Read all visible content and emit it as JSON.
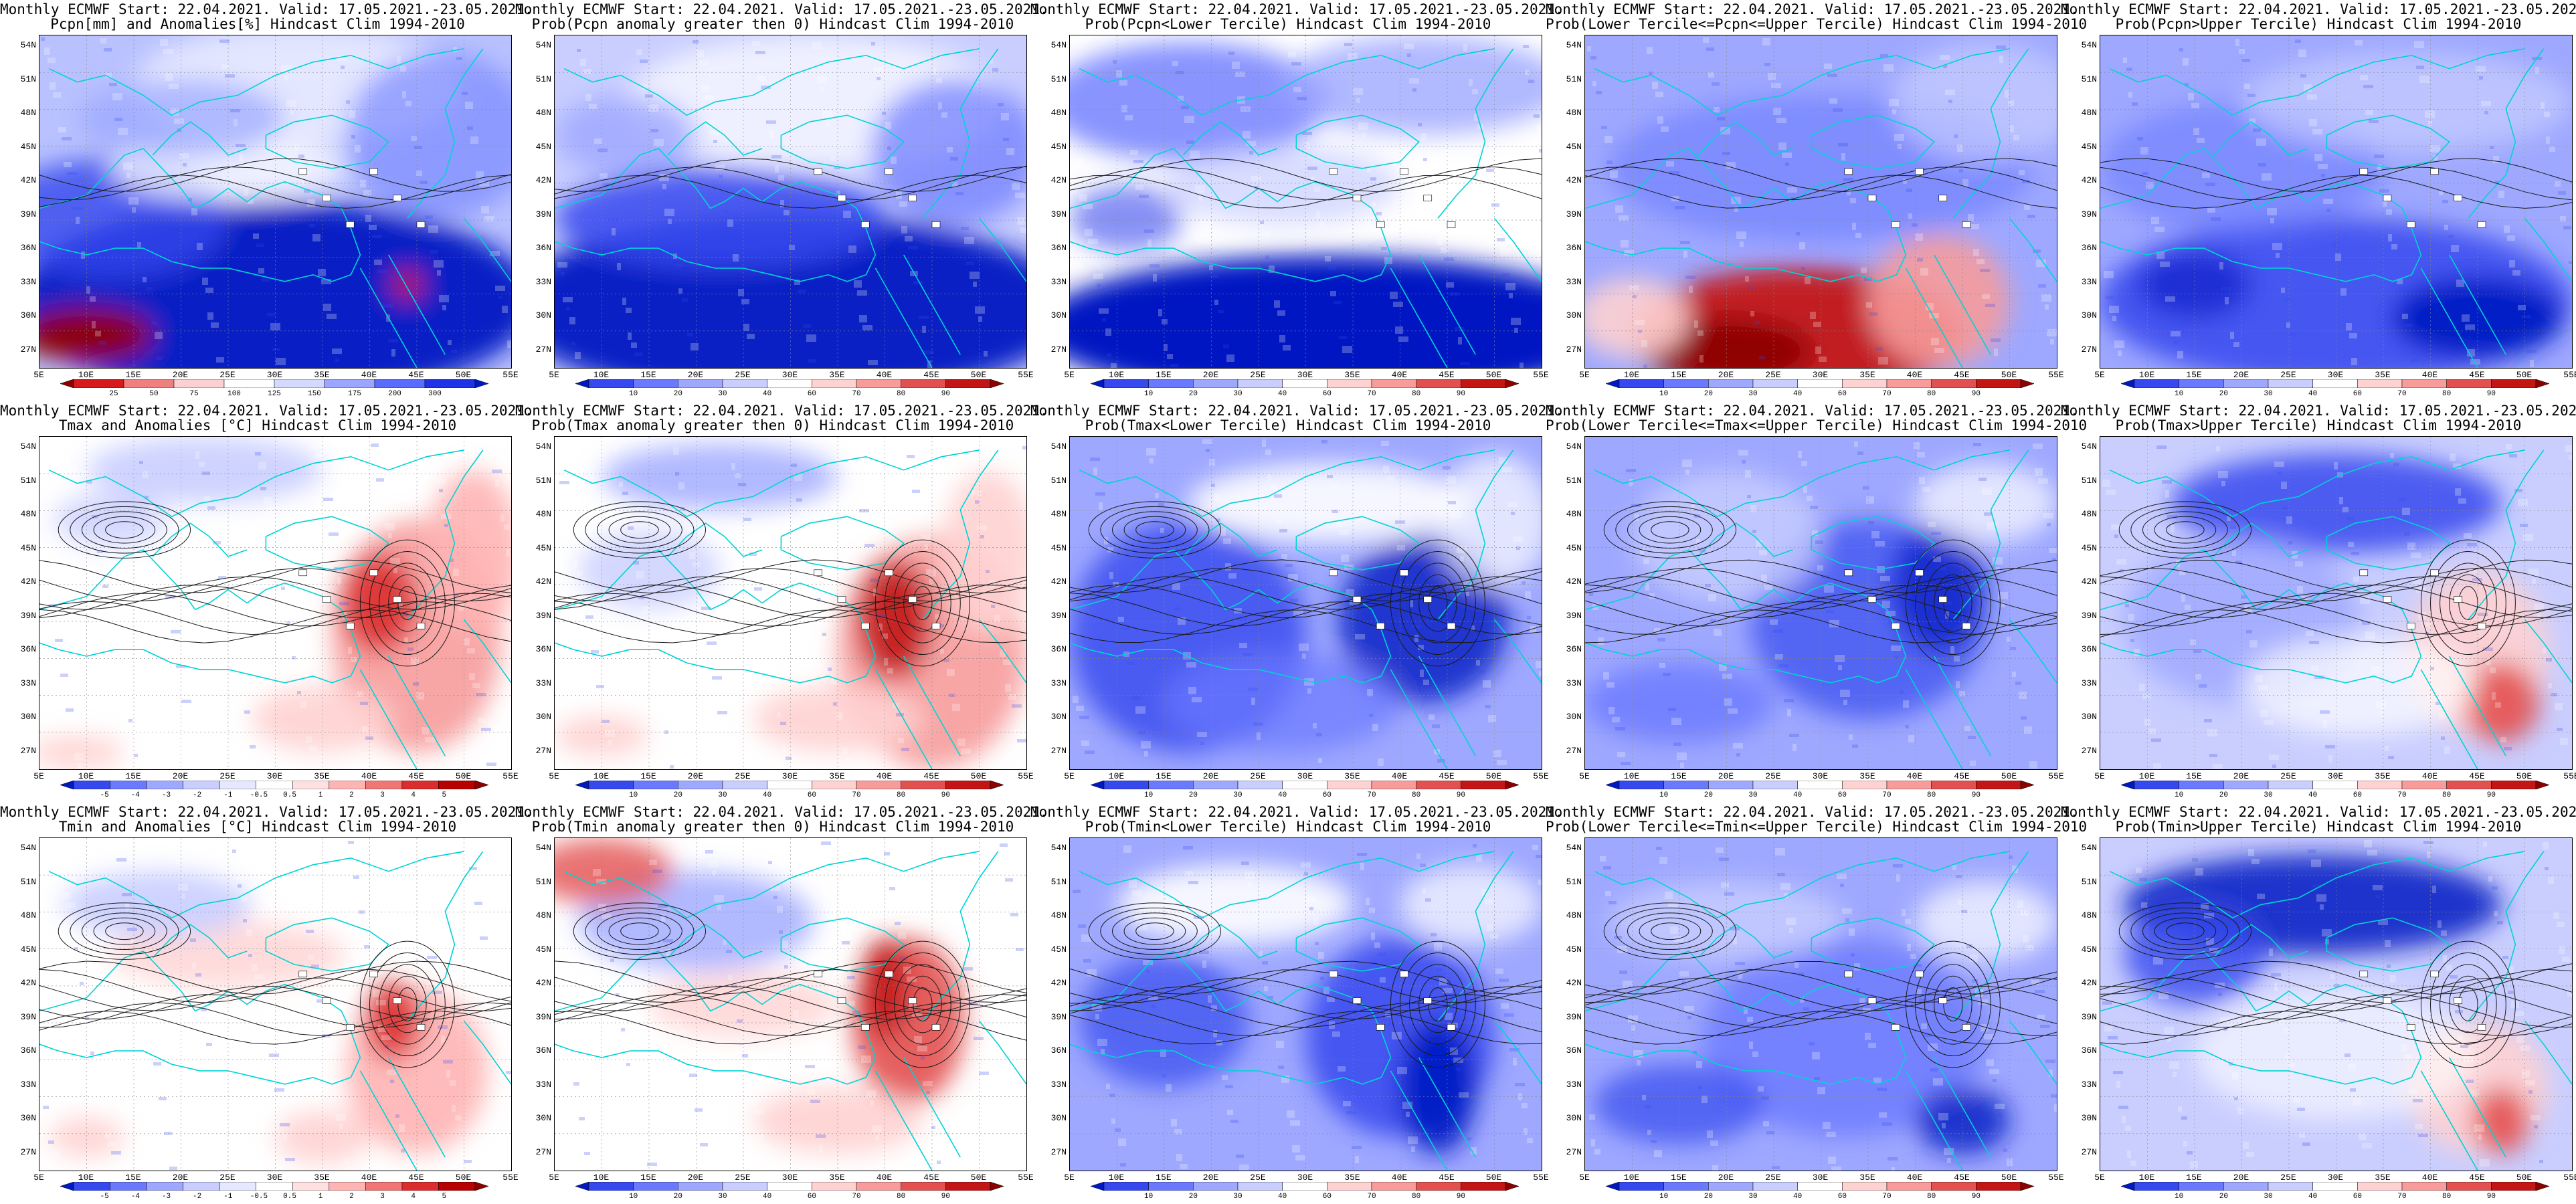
{
  "header": {
    "line1": "Monthly ECMWF Start: 22.04.2021. Valid: 17.05.2021.-23.05.2021."
  },
  "axes": {
    "lat_ticks": [
      "54N",
      "51N",
      "48N",
      "45N",
      "42N",
      "39N",
      "36N",
      "33N",
      "30N",
      "27N"
    ],
    "lon_ticks": [
      "5E",
      "10E",
      "15E",
      "20E",
      "25E",
      "30E",
      "35E",
      "40E",
      "45E",
      "50E",
      "55E"
    ]
  },
  "colorbars": {
    "precip_anom": [
      "25",
      "50",
      "75",
      "100",
      "125",
      "150",
      "175",
      "200",
      "300"
    ],
    "temp_anom": [
      "-5",
      "-4",
      "-3",
      "-2",
      "-1",
      "-0.5",
      "0.5",
      "1",
      "2",
      "3",
      "4",
      "5"
    ],
    "prob": [
      "10",
      "20",
      "30",
      "40",
      "60",
      "70",
      "80",
      "90"
    ]
  },
  "colors": {
    "coast": "#00d3d3",
    "contour": "#1a1a1a",
    "deep_blue": "#0019c2",
    "deep_red": "#8c0000"
  },
  "panels": [
    {
      "title2": "Pcpn[mm] and Anomalies[%] Hindcast Clim 1994-2010",
      "cbar": "precip_anom",
      "theme": "precip_anom"
    },
    {
      "title2": "Prob(Pcpn anomaly greater then 0) Hindcast Clim 1994-2010",
      "cbar": "prob",
      "theme": "precip_prob"
    },
    {
      "title2": "Prob(Pcpn<Lower Tercile) Hindcast Clim 1994-2010",
      "cbar": "prob",
      "theme": "precip_low"
    },
    {
      "title2": "Prob(Lower Tercile<=Pcpn<=Upper Tercile) Hindcast Clim 1994-2010",
      "cbar": "prob",
      "theme": "precip_mid"
    },
    {
      "title2": "Prob(Pcpn>Upper Tercile) Hindcast Clim 1994-2010",
      "cbar": "prob",
      "theme": "precip_up"
    },
    {
      "title2": "Tmax and Anomalies [°C] Hindcast Clim 1994-2010",
      "cbar": "temp_anom",
      "theme": "tmax_anom"
    },
    {
      "title2": "Prob(Tmax anomaly greater then 0) Hindcast Clim 1994-2010",
      "cbar": "prob",
      "theme": "tmax_prob"
    },
    {
      "title2": "Prob(Tmax<Lower Tercile) Hindcast Clim 1994-2010",
      "cbar": "prob",
      "theme": "tmax_low"
    },
    {
      "title2": "Prob(Lower Tercile<=Tmax<=Upper Tercile) Hindcast Clim 1994-2010",
      "cbar": "prob",
      "theme": "tmax_mid"
    },
    {
      "title2": "Prob(Tmax>Upper Tercile) Hindcast Clim 1994-2010",
      "cbar": "prob",
      "theme": "tmax_up"
    },
    {
      "title2": "Tmin and Anomalies [°C] Hindcast Clim 1994-2010",
      "cbar": "temp_anom",
      "theme": "tmin_anom"
    },
    {
      "title2": "Prob(Tmin anomaly greater then 0) Hindcast Clim 1994-2010",
      "cbar": "prob",
      "theme": "tmin_prob"
    },
    {
      "title2": "Prob(Tmin<Lower Tercile) Hindcast Clim 1994-2010",
      "cbar": "prob",
      "theme": "tmin_low"
    },
    {
      "title2": "Prob(Lower Tercile<=Tmin<=Upper Tercile) Hindcast Clim 1994-2010",
      "cbar": "prob",
      "theme": "tmin_mid"
    },
    {
      "title2": "Prob(Tmin>Upper Tercile) Hindcast Clim 1994-2010",
      "cbar": "prob",
      "theme": "tmin_up"
    }
  ]
}
